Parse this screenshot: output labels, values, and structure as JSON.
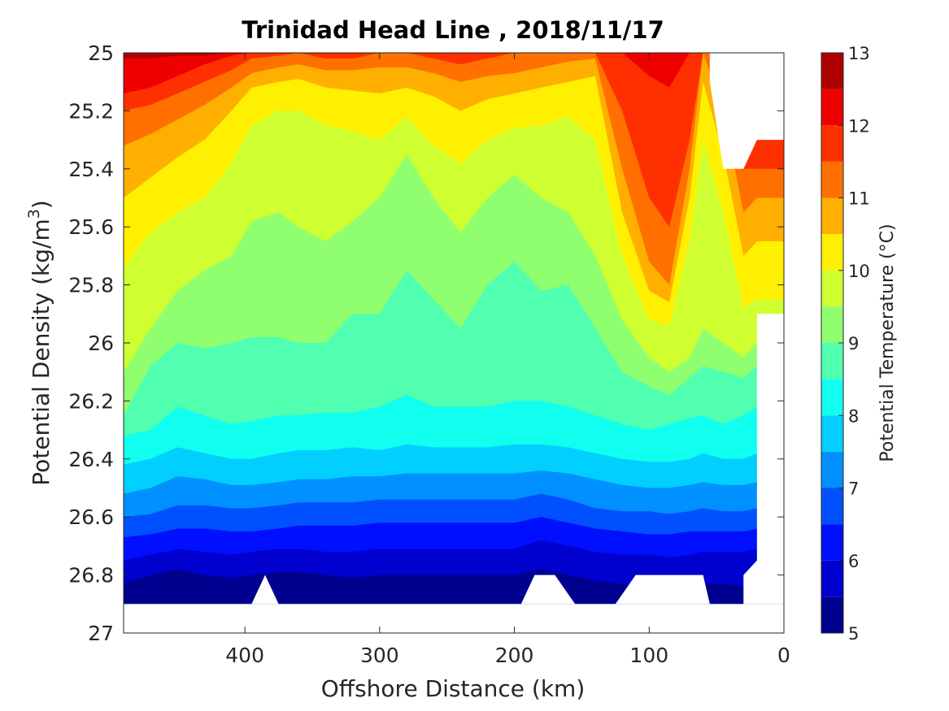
{
  "chart_data": {
    "type": "heatmap",
    "subtype": "filled-contour",
    "title": "Trinidad Head Line , 2018/11/17",
    "xlabel": "Offshore Distance (km)",
    "ylabel_main": "Potential Density (kg/m",
    "ylabel_sup": "3",
    "ylabel_end": ")",
    "xlim": [
      490,
      0
    ],
    "x_reversed": true,
    "ylim": [
      25,
      27
    ],
    "y_reversed": true,
    "x_ticks": [
      400,
      300,
      200,
      100,
      0
    ],
    "x_tick_labels": [
      "400",
      "300",
      "200",
      "100",
      "0"
    ],
    "y_ticks": [
      25,
      25.2,
      25.4,
      25.6,
      25.8,
      26,
      26.2,
      26.4,
      26.6,
      26.8,
      27
    ],
    "y_tick_labels": [
      "25",
      "25.2",
      "25.4",
      "25.6",
      "25.8",
      "26",
      "26.2",
      "26.4",
      "26.6",
      "26.8",
      "27"
    ],
    "grid": false,
    "colorbar": {
      "label": "Potential Temperature (°C)",
      "range": [
        5,
        13
      ],
      "tick_values": [
        5,
        6,
        7,
        8,
        9,
        10,
        11,
        12,
        13
      ],
      "tick_labels": [
        "5",
        "6",
        "7",
        "8",
        "9",
        "10",
        "11",
        "12",
        "13"
      ],
      "levels": [
        5,
        5.5,
        6,
        6.5,
        7,
        7.5,
        8,
        8.5,
        9,
        9.5,
        10,
        10.5,
        11,
        11.5,
        12,
        12.5,
        13
      ],
      "colors": [
        "#00008f",
        "#0000cf",
        "#0010ff",
        "#0050ff",
        "#0090ff",
        "#00cfff",
        "#10ffef",
        "#50ffaf",
        "#8fff70",
        "#cfff30",
        "#ffef00",
        "#ffaf00",
        "#ff7000",
        "#ff3000",
        "#ef0000",
        "#af0000"
      ]
    },
    "x": [
      490,
      470,
      450,
      430,
      410,
      395,
      375,
      360,
      340,
      320,
      300,
      280,
      260,
      240,
      220,
      200,
      180,
      160,
      140,
      120,
      100,
      85,
      70,
      60,
      45,
      30,
      20
    ],
    "isopycnals_bottom_of_band_for_each_temperature": [
      {
        "t": 12.5,
        "y": [
          25.02,
          25.02,
          25.01,
          25.01,
          25.0,
          25.0,
          25.0,
          25.0,
          25.0,
          25.0,
          25.0,
          25.0,
          25.0,
          25.0,
          25.0,
          25.0,
          25.0,
          25.0,
          25.0,
          25.0,
          25.0,
          25.0,
          25.0,
          25.0,
          25.0,
          25.0,
          25.0
        ]
      },
      {
        "t": 12.0,
        "y": [
          25.14,
          25.12,
          25.08,
          25.04,
          25.01,
          25.0,
          25.0,
          25.0,
          25.0,
          25.0,
          25.0,
          25.0,
          25.0,
          25.0,
          25.0,
          25.0,
          25.0,
          25.0,
          25.0,
          25.0,
          25.08,
          25.12,
          25.0,
          25.0,
          25.0,
          25.0,
          25.0
        ]
      },
      {
        "t": 11.5,
        "y": [
          25.2,
          25.18,
          25.14,
          25.1,
          25.06,
          25.02,
          25.01,
          25.0,
          25.02,
          25.02,
          25.0,
          25.0,
          25.02,
          25.04,
          25.02,
          25.0,
          25.0,
          25.0,
          25.0,
          25.2,
          25.5,
          25.6,
          25.3,
          25.0,
          25.0,
          25.4,
          25.4
        ]
      },
      {
        "t": 11.0,
        "y": [
          25.32,
          25.28,
          25.23,
          25.18,
          25.12,
          25.07,
          25.05,
          25.04,
          25.06,
          25.06,
          25.05,
          25.05,
          25.07,
          25.1,
          25.08,
          25.07,
          25.05,
          25.03,
          25.02,
          25.4,
          25.72,
          25.8,
          25.4,
          25.0,
          25.2,
          25.55,
          25.5
        ]
      },
      {
        "t": 10.5,
        "y": [
          25.5,
          25.43,
          25.36,
          25.3,
          25.2,
          25.12,
          25.1,
          25.09,
          25.12,
          25.13,
          25.14,
          25.12,
          25.15,
          25.2,
          25.16,
          25.14,
          25.12,
          25.1,
          25.08,
          25.55,
          25.82,
          25.86,
          25.5,
          25.1,
          25.35,
          25.7,
          25.65
        ]
      },
      {
        "t": 10.0,
        "y": [
          25.74,
          25.62,
          25.55,
          25.5,
          25.38,
          25.25,
          25.2,
          25.2,
          25.25,
          25.27,
          25.3,
          25.22,
          25.32,
          25.38,
          25.3,
          25.26,
          25.25,
          25.22,
          25.3,
          25.7,
          25.92,
          25.94,
          25.65,
          25.3,
          25.55,
          25.88,
          25.85
        ]
      },
      {
        "t": 9.5,
        "y": [
          26.1,
          25.95,
          25.82,
          25.75,
          25.7,
          25.58,
          25.55,
          25.6,
          25.65,
          25.58,
          25.5,
          25.35,
          25.5,
          25.62,
          25.5,
          25.42,
          25.5,
          25.55,
          25.7,
          25.92,
          26.05,
          26.1,
          26.05,
          25.95,
          26.0,
          26.05,
          26.0
        ]
      },
      {
        "t": 9.0,
        "y": [
          26.25,
          26.08,
          26.0,
          26.02,
          26.0,
          25.98,
          25.98,
          26.0,
          26.0,
          25.9,
          25.9,
          25.75,
          25.85,
          25.95,
          25.8,
          25.72,
          25.82,
          25.8,
          25.95,
          26.1,
          26.15,
          26.18,
          26.12,
          26.08,
          26.1,
          26.12,
          26.08
        ]
      },
      {
        "t": 8.5,
        "y": [
          26.32,
          26.3,
          26.22,
          26.25,
          26.28,
          26.27,
          26.25,
          26.25,
          26.24,
          26.24,
          26.22,
          26.18,
          26.22,
          26.22,
          26.22,
          26.2,
          26.2,
          26.22,
          26.25,
          26.28,
          26.3,
          26.28,
          26.26,
          26.25,
          26.28,
          26.25,
          26.22
        ]
      },
      {
        "t": 8.0,
        "y": [
          26.42,
          26.4,
          26.36,
          26.38,
          26.4,
          26.4,
          26.38,
          26.37,
          26.37,
          26.36,
          26.37,
          26.35,
          26.36,
          26.36,
          26.36,
          26.35,
          26.35,
          26.36,
          26.38,
          26.4,
          26.41,
          26.41,
          26.4,
          26.38,
          26.4,
          26.4,
          26.38
        ]
      },
      {
        "t": 7.5,
        "y": [
          26.52,
          26.5,
          26.46,
          26.47,
          26.49,
          26.49,
          26.48,
          26.47,
          26.47,
          26.46,
          26.46,
          26.45,
          26.45,
          26.45,
          26.45,
          26.45,
          26.44,
          26.45,
          26.47,
          26.49,
          26.5,
          26.5,
          26.49,
          26.48,
          26.49,
          26.49,
          26.48
        ]
      },
      {
        "t": 7.0,
        "y": [
          26.6,
          26.59,
          26.56,
          26.56,
          26.57,
          26.57,
          26.56,
          26.55,
          26.55,
          26.55,
          26.54,
          26.54,
          26.54,
          26.54,
          26.54,
          26.54,
          26.52,
          26.54,
          26.57,
          26.58,
          26.58,
          26.59,
          26.58,
          26.57,
          26.58,
          26.58,
          26.57
        ]
      },
      {
        "t": 6.5,
        "y": [
          26.67,
          26.66,
          26.64,
          26.64,
          26.65,
          26.65,
          26.64,
          26.63,
          26.63,
          26.63,
          26.62,
          26.62,
          26.62,
          26.62,
          26.62,
          26.62,
          26.6,
          26.62,
          26.64,
          26.65,
          26.66,
          26.66,
          26.65,
          26.65,
          26.65,
          26.65,
          26.64
        ]
      },
      {
        "t": 6.0,
        "y": [
          26.75,
          26.73,
          26.71,
          26.72,
          26.73,
          26.72,
          26.71,
          26.71,
          26.72,
          26.72,
          26.71,
          26.71,
          26.71,
          26.71,
          26.71,
          26.71,
          26.68,
          26.7,
          26.72,
          26.73,
          26.73,
          26.74,
          26.73,
          26.72,
          26.72,
          26.72,
          26.71
        ]
      },
      {
        "t": 5.5,
        "y": [
          26.83,
          26.8,
          26.78,
          26.8,
          26.81,
          26.8,
          26.79,
          26.79,
          26.8,
          26.81,
          26.8,
          26.8,
          26.8,
          26.8,
          26.8,
          26.8,
          26.78,
          26.8,
          26.82,
          26.83,
          26.84,
          26.85,
          26.84,
          26.83,
          26.83,
          26.84,
          26.83
        ]
      }
    ],
    "data_extent_bottom_y": 26.9,
    "missing_regions": [
      {
        "x": [
          395,
          385,
          375
        ],
        "y": [
          26.9,
          26.8,
          26.9
        ]
      },
      {
        "x": [
          195,
          185,
          170,
          155
        ],
        "y": [
          26.9,
          26.8,
          26.8,
          26.9
        ]
      },
      {
        "x": [
          125,
          110,
          60,
          55
        ],
        "y": [
          26.9,
          26.8,
          26.8,
          26.9
        ]
      },
      {
        "x": [
          30,
          0
        ],
        "note": "no data below 26.8 east of 30 km, above 25.4 east of 55 km"
      }
    ]
  }
}
